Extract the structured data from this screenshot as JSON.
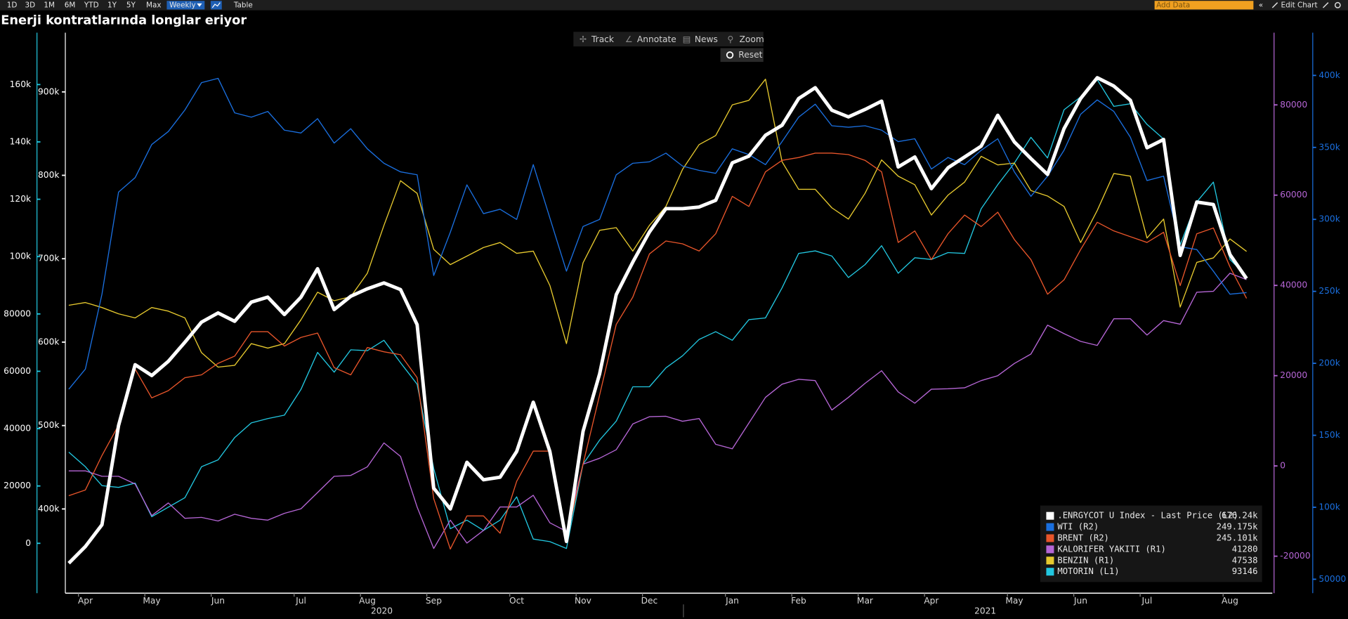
{
  "toolbar": {
    "ranges": [
      "1D",
      "3D",
      "1M",
      "6M",
      "YTD",
      "1Y",
      "5Y",
      "Max"
    ],
    "frequency": "Weekly",
    "table": "Table",
    "add_data": "Add Data",
    "edit_chart": "Edit Chart"
  },
  "chart_tools": [
    "Track",
    "Annotate",
    "News",
    "Zoom"
  ],
  "reset": "Reset",
  "chart_data": {
    "type": "line",
    "title": "Enerji kontratlarında longlar eriyor",
    "categories": [
      null,
      "Apr",
      null,
      null,
      null,
      "May",
      null,
      null,
      null,
      "Jun",
      null,
      null,
      null,
      null,
      "Jul",
      null,
      null,
      null,
      "Aug",
      null,
      null,
      null,
      "Sep",
      null,
      null,
      null,
      null,
      "Oct",
      null,
      null,
      null,
      "Nov",
      null,
      null,
      null,
      "Dec",
      null,
      null,
      null,
      null,
      "Jan",
      null,
      null,
      null,
      "Feb",
      null,
      null,
      null,
      "Mar",
      null,
      null,
      null,
      "Apr",
      null,
      null,
      null,
      null,
      "May",
      null,
      null,
      null,
      "Jun",
      null,
      null,
      null,
      "Jul",
      null,
      null,
      null,
      null,
      "Aug",
      null
    ],
    "year_labels": [
      "2020",
      "2021"
    ],
    "legend": "bottom-right",
    "axes": {
      "L1": {
        "color": "#22c7e0",
        "lim": [
          -17400,
          178100
        ],
        "ticks": [
          0,
          20000,
          40000,
          60000,
          80000,
          {
            "value": 100000,
            "label": "100k"
          },
          {
            "value": 120000,
            "label": "120k"
          },
          {
            "value": 140000,
            "label": "140k"
          },
          {
            "value": 160000,
            "label": "160k"
          }
        ]
      },
      "L2": {
        "color": "#ffffff",
        "lim": [
          299000,
          971000
        ],
        "ticks": [
          {
            "value": 400000,
            "label": "400k"
          },
          {
            "value": 500000,
            "label": "500k"
          },
          {
            "value": 600000,
            "label": "600k"
          },
          {
            "value": 700000,
            "label": "700k"
          },
          {
            "value": 800000,
            "label": "800k"
          },
          {
            "value": 900000,
            "label": "900k"
          }
        ]
      },
      "R1": {
        "color": "#b666d6",
        "lim": [
          -28200,
          96000
        ],
        "ticks": [
          -20000,
          0,
          20000,
          40000,
          60000,
          80000
        ]
      },
      "R2": {
        "color": "#1a6fdf",
        "lim": [
          40300,
          429700
        ],
        "ticks": [
          50000,
          {
            "value": 100000,
            "label": "100k"
          },
          {
            "value": 150000,
            "label": "150k"
          },
          {
            "value": 200000,
            "label": "200k"
          },
          {
            "value": 250000,
            "label": "250k"
          },
          {
            "value": 300000,
            "label": "300k"
          },
          {
            "value": 350000,
            "label": "350k"
          },
          {
            "value": 400000,
            "label": "400k"
          }
        ]
      }
    },
    "series": [
      {
        "name": ".ENRGYCOT U Index - Last Price (L2)",
        "color": "#ffffff",
        "axis": "L2",
        "last_label": "676.24k",
        "values": [
          335000,
          355000,
          381000,
          500000,
          573000,
          560000,
          577000,
          600000,
          624000,
          635000,
          625000,
          648000,
          654000,
          633000,
          654000,
          688000,
          639000,
          655000,
          664000,
          671000,
          663000,
          621000,
          425000,
          400000,
          456000,
          435000,
          438000,
          469000,
          528000,
          469000,
          361000,
          493000,
          562000,
          657000,
          696000,
          732000,
          760000,
          760000,
          762000,
          770000,
          815000,
          823000,
          848000,
          860000,
          892000,
          905000,
          878000,
          870000,
          879000,
          889000,
          810000,
          822000,
          784000,
          809000,
          822000,
          835000,
          872000,
          840000,
          820000,
          801000,
          856000,
          892000,
          917000,
          907000,
          890000,
          833000,
          843000,
          704000,
          768000,
          765000,
          705000,
          676240
        ]
      },
      {
        "name": "WTI  (R2)",
        "color": "#1a6fdf",
        "axis": "R2",
        "last_label": "249.175k",
        "values": [
          182000,
          196000,
          248000,
          319000,
          329000,
          352000,
          361000,
          376000,
          395000,
          398000,
          374000,
          371000,
          375000,
          362000,
          360000,
          370000,
          353000,
          363000,
          349000,
          339000,
          333000,
          331000,
          261000,
          291000,
          324000,
          304000,
          307000,
          300000,
          338000,
          301000,
          264000,
          295000,
          300000,
          331000,
          339000,
          340000,
          346000,
          337000,
          334000,
          332000,
          349000,
          345000,
          338000,
          354000,
          371000,
          380000,
          365000,
          364000,
          365000,
          362000,
          354000,
          356000,
          335000,
          343000,
          338000,
          348000,
          356000,
          333000,
          316000,
          330000,
          348000,
          373000,
          383000,
          375000,
          357000,
          327000,
          330000,
          281000,
          279000,
          264000,
          248000,
          249175
        ]
      },
      {
        "name": "BRENT  (R2)",
        "color": "#e8552a",
        "axis": "R2",
        "last_label": "245.101k",
        "values": [
          108000,
          112000,
          136000,
          157000,
          196000,
          176000,
          181000,
          190000,
          192000,
          200000,
          205000,
          222000,
          222000,
          212000,
          218000,
          221000,
          197000,
          192000,
          211000,
          208000,
          206000,
          190000,
          106000,
          71000,
          94000,
          94000,
          82000,
          118000,
          139000,
          139000,
          78000,
          130000,
          178000,
          227000,
          246000,
          276000,
          285000,
          283000,
          278000,
          290000,
          316000,
          309000,
          333000,
          341000,
          343000,
          346000,
          346000,
          345000,
          341000,
          333000,
          284000,
          292000,
          272000,
          290000,
          303000,
          295000,
          305000,
          286000,
          272000,
          248000,
          258000,
          279000,
          298000,
          292000,
          288000,
          284000,
          291000,
          254000,
          290000,
          294000,
          267000,
          245101
        ]
      },
      {
        "name": "KALORIFER YAKITI (R1)",
        "color": "#b666d6",
        "axis": "R1",
        "last_label": "41280",
        "values": [
          -1100,
          -1100,
          -2300,
          -2300,
          -4000,
          -11000,
          -8200,
          -11600,
          -11400,
          -12200,
          -10700,
          -11600,
          -12000,
          -10500,
          -9500,
          -5900,
          -2300,
          -2100,
          -200,
          5100,
          2100,
          -9100,
          -18300,
          -12000,
          -17100,
          -14300,
          -9100,
          -9100,
          -6500,
          -12600,
          -14500,
          400,
          1700,
          3600,
          9300,
          10900,
          11000,
          9900,
          10500,
          4800,
          3800,
          9500,
          15200,
          18100,
          19200,
          18900,
          12400,
          15200,
          18300,
          21100,
          16400,
          13900,
          17000,
          17100,
          17300,
          18900,
          20000,
          22700,
          24800,
          31200,
          29300,
          27600,
          26700,
          32600,
          32600,
          29000,
          32200,
          31400,
          38500,
          38700,
          42700,
          41280
        ]
      },
      {
        "name": "BENZIN (R1)",
        "color": "#e6c92e",
        "axis": "R1",
        "last_label": "47538",
        "values": [
          35600,
          36200,
          35100,
          33700,
          32800,
          35100,
          34300,
          32800,
          25100,
          21900,
          22300,
          27100,
          26100,
          27100,
          32400,
          38500,
          36600,
          37500,
          42700,
          53300,
          63200,
          60400,
          48000,
          44600,
          46500,
          48400,
          49500,
          47100,
          47600,
          40000,
          27100,
          45000,
          52200,
          52800,
          47600,
          53300,
          57500,
          65700,
          71200,
          73200,
          80000,
          81000,
          85700,
          67400,
          61300,
          61300,
          57200,
          54700,
          60400,
          67800,
          64200,
          62300,
          55600,
          60000,
          62900,
          68600,
          66700,
          67100,
          61000,
          59800,
          57500,
          49500,
          56600,
          64800,
          64200,
          50500,
          54700,
          35200,
          45100,
          46100,
          50300,
          47538
        ]
      },
      {
        "name": "MOTORIN (L1)",
        "color": "#22c7e0",
        "axis": "L1",
        "last_label": "93146",
        "values": [
          31800,
          26700,
          20100,
          19500,
          21000,
          9300,
          12600,
          15900,
          26700,
          29100,
          36900,
          42000,
          43500,
          44700,
          53700,
          66600,
          59700,
          67500,
          67200,
          70800,
          63000,
          55500,
          26100,
          5100,
          8100,
          4500,
          8100,
          16200,
          1500,
          600,
          -1800,
          27600,
          36000,
          42600,
          54600,
          54600,
          61200,
          65400,
          71100,
          73800,
          70800,
          78000,
          78600,
          89100,
          101100,
          102000,
          100200,
          92700,
          97200,
          103800,
          94200,
          99600,
          99000,
          101400,
          101100,
          116700,
          125100,
          132600,
          141600,
          134400,
          151200,
          155700,
          161700,
          152400,
          153300,
          146100,
          141000,
          104100,
          119100,
          126000,
          99000,
          93146
        ]
      }
    ]
  }
}
